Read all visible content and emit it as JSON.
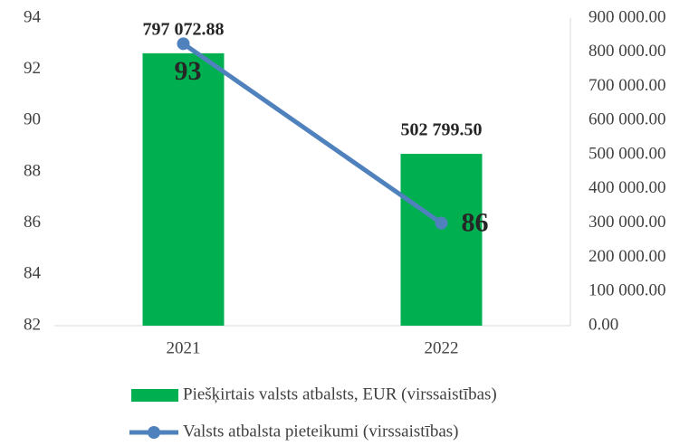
{
  "chart_data": {
    "type": "bar",
    "categories": [
      "2021",
      "2022"
    ],
    "series": [
      {
        "name": "Piešķirtais valsts atbalsts, EUR (virssaistības)",
        "type": "bar",
        "axis": "y2",
        "color": "#00b050",
        "values": [
          797072.88,
          502799.5
        ],
        "value_labels": [
          "797 072.88",
          "502 799.50"
        ]
      },
      {
        "name": "Valsts atbalsta pieteikumi (virssaistības)",
        "type": "line",
        "color": "#4f81bd",
        "values": [
          93,
          86
        ]
      }
    ],
    "ylim": [
      82,
      94
    ],
    "yticks": [
      82,
      84,
      86,
      88,
      90,
      92,
      94
    ],
    "y2lim": [
      0,
      900000
    ],
    "y2ticks": [
      {
        "value": 0,
        "label": "0.00"
      },
      {
        "value": 100000,
        "label": "100 000.00"
      },
      {
        "value": 200000,
        "label": "200 000.00"
      },
      {
        "value": 300000,
        "label": "300 000.00"
      },
      {
        "value": 400000,
        "label": "400 000.00"
      },
      {
        "value": 500000,
        "label": "500 000.00"
      },
      {
        "value": 600000,
        "label": "600 000.00"
      },
      {
        "value": 700000,
        "label": "700 000.00"
      },
      {
        "value": 800000,
        "label": "800 000.00"
      },
      {
        "value": 900000,
        "label": "900 000.00"
      }
    ],
    "grid": false,
    "legend": "bottom"
  }
}
